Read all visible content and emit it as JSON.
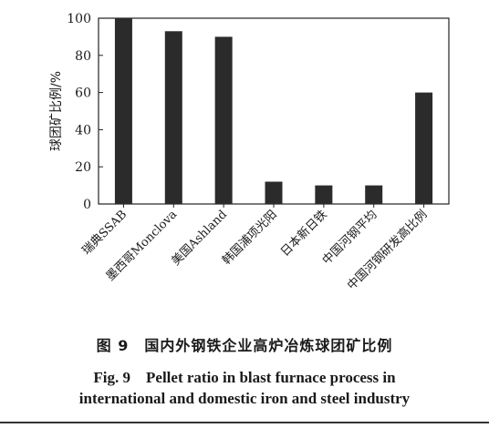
{
  "chart_data": {
    "type": "bar",
    "categories": [
      "瑞典SSAB",
      "墨西哥Monclova",
      "美国Ashland",
      "韩国浦项光阳",
      "日本新日铁",
      "中国河钢平均",
      "中国河钢研发高比例"
    ],
    "values": [
      100,
      93,
      90,
      12,
      10,
      10,
      60
    ],
    "ylabel": "球团矿比例/%",
    "xlabel": "",
    "yticks": [
      0,
      20,
      40,
      60,
      80,
      100
    ],
    "ylim": [
      0,
      100
    ],
    "grid": false,
    "bar_color": "#2b2b2b"
  },
  "caption": {
    "cn": "图 9　国内外钢铁企业高炉冶炼球团矿比例",
    "en_line1": "Fig. 9　Pellet ratio in blast furnace process in",
    "en_line2": "international and domestic iron and steel industry"
  }
}
